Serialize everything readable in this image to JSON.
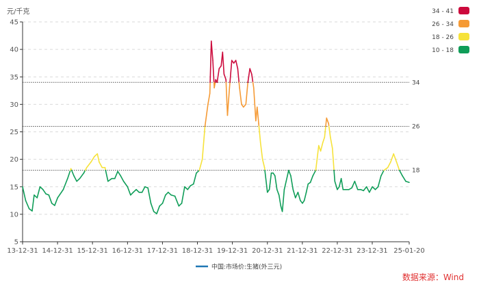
{
  "chart_data": {
    "type": "line",
    "y_unit": "元/千克",
    "ylim": [
      5,
      45
    ],
    "yticks": [
      5,
      10,
      15,
      20,
      25,
      30,
      35,
      40,
      45
    ],
    "xlim": [
      "2013-12-31",
      "2025-01-20"
    ],
    "xticks": [
      {
        "date": "2013-12-31",
        "label": "13-12-31"
      },
      {
        "date": "2014-12-31",
        "label": "14-12-31"
      },
      {
        "date": "2015-12-31",
        "label": "15-12-31"
      },
      {
        "date": "2016-12-31",
        "label": "16-12-31"
      },
      {
        "date": "2017-12-31",
        "label": "17-12-31"
      },
      {
        "date": "2018-12-31",
        "label": "18-12-31"
      },
      {
        "date": "2019-12-31",
        "label": "19-12-31"
      },
      {
        "date": "2020-12-31",
        "label": "20-12-31"
      },
      {
        "date": "2021-12-31",
        "label": "21-12-31"
      },
      {
        "date": "2022-12-31",
        "label": "22-12-31"
      },
      {
        "date": "2023-12-31",
        "label": "23-12-31"
      },
      {
        "date": "2025-01-20",
        "label": "25-01-20"
      }
    ],
    "grid": "horizontal dashed",
    "thresholds": [
      {
        "value": 34,
        "label": "34"
      },
      {
        "value": 26,
        "label": "26"
      },
      {
        "value": 18,
        "label": "18"
      }
    ],
    "color_ranges": [
      {
        "label": "34 - 41",
        "min": 34,
        "max": 41,
        "color": "#cc0a3c"
      },
      {
        "label": "26 - 34",
        "min": 26,
        "max": 34,
        "color": "#f59a35"
      },
      {
        "label": "18 - 26",
        "min": 18,
        "max": 26,
        "color": "#f6e23a"
      },
      {
        "label": "10 - 18",
        "min": 10,
        "max": 18,
        "color": "#0f9d58"
      }
    ],
    "legend_position": "top-right",
    "series": [
      {
        "name": "中国:市场价:生猪(外三元)",
        "legend_color": "#1f77b4",
        "points": [
          [
            "2013-12-31",
            15.0
          ],
          [
            "2014-02-01",
            12.5
          ],
          [
            "2014-03-10",
            11.0
          ],
          [
            "2014-04-10",
            10.6
          ],
          [
            "2014-05-01",
            13.5
          ],
          [
            "2014-06-01",
            13.0
          ],
          [
            "2014-07-01",
            15.0
          ],
          [
            "2014-08-01",
            14.5
          ],
          [
            "2014-09-01",
            13.7
          ],
          [
            "2014-10-01",
            13.5
          ],
          [
            "2014-11-01",
            12.0
          ],
          [
            "2014-12-01",
            11.6
          ],
          [
            "2015-01-01",
            13.0
          ],
          [
            "2015-03-01",
            14.5
          ],
          [
            "2015-04-15",
            16.5
          ],
          [
            "2015-05-20",
            18.3
          ],
          [
            "2015-06-20",
            17.0
          ],
          [
            "2015-07-20",
            16.0
          ],
          [
            "2015-08-20",
            16.5
          ],
          [
            "2015-10-01",
            17.5
          ],
          [
            "2015-11-01",
            18.5
          ],
          [
            "2015-12-15",
            19.5
          ],
          [
            "2016-01-20",
            20.5
          ],
          [
            "2016-02-20",
            21.0
          ],
          [
            "2016-03-10",
            19.5
          ],
          [
            "2016-04-10",
            18.5
          ],
          [
            "2016-05-10",
            18.5
          ],
          [
            "2016-06-10",
            16.0
          ],
          [
            "2016-07-20",
            16.5
          ],
          [
            "2016-08-20",
            16.5
          ],
          [
            "2016-09-20",
            17.8
          ],
          [
            "2016-10-20",
            17.0
          ],
          [
            "2016-11-20",
            16.0
          ],
          [
            "2016-12-31",
            15.0
          ],
          [
            "2017-02-01",
            13.5
          ],
          [
            "2017-03-01",
            14.0
          ],
          [
            "2017-04-01",
            14.5
          ],
          [
            "2017-05-01",
            14.0
          ],
          [
            "2017-06-01",
            14.0
          ],
          [
            "2017-07-01",
            15.0
          ],
          [
            "2017-08-01",
            14.8
          ],
          [
            "2017-09-01",
            12.0
          ],
          [
            "2017-10-01",
            10.5
          ],
          [
            "2017-11-01",
            10.1
          ],
          [
            "2017-12-01",
            11.5
          ],
          [
            "2018-01-01",
            12.0
          ],
          [
            "2018-02-01",
            13.5
          ],
          [
            "2018-03-01",
            14.0
          ],
          [
            "2018-04-01",
            13.5
          ],
          [
            "2018-05-10",
            13.3
          ],
          [
            "2018-06-20",
            11.5
          ],
          [
            "2018-07-20",
            12.0
          ],
          [
            "2018-08-20",
            15.0
          ],
          [
            "2018-09-20",
            14.5
          ],
          [
            "2018-10-20",
            15.2
          ],
          [
            "2018-11-20",
            15.5
          ],
          [
            "2018-12-20",
            17.5
          ],
          [
            "2019-01-20",
            18.0
          ],
          [
            "2019-02-20",
            20.0
          ],
          [
            "2019-03-20",
            26.0
          ],
          [
            "2019-04-20",
            30.0
          ],
          [
            "2019-05-10",
            32.0
          ],
          [
            "2019-05-25",
            41.5
          ],
          [
            "2019-06-10",
            38.0
          ],
          [
            "2019-06-25",
            33.0
          ],
          [
            "2019-07-10",
            34.5
          ],
          [
            "2019-07-25",
            34.0
          ],
          [
            "2019-08-15",
            36.5
          ],
          [
            "2019-09-05",
            37.0
          ],
          [
            "2019-09-20",
            39.5
          ],
          [
            "2019-10-05",
            35.5
          ],
          [
            "2019-10-25",
            34.5
          ],
          [
            "2019-11-10",
            28.0
          ],
          [
            "2019-12-01",
            33.0
          ],
          [
            "2019-12-25",
            38.0
          ],
          [
            "2020-01-15",
            37.5
          ],
          [
            "2020-02-05",
            38.0
          ],
          [
            "2020-02-25",
            36.5
          ],
          [
            "2020-03-15",
            33.0
          ],
          [
            "2020-04-05",
            30.0
          ],
          [
            "2020-04-25",
            29.5
          ],
          [
            "2020-05-20",
            30.0
          ],
          [
            "2020-06-10",
            34.0
          ],
          [
            "2020-07-01",
            36.5
          ],
          [
            "2020-07-20",
            35.5
          ],
          [
            "2020-08-10",
            33.0
          ],
          [
            "2020-09-01",
            27.0
          ],
          [
            "2020-09-15",
            29.5
          ],
          [
            "2020-10-01",
            26.5
          ],
          [
            "2020-10-20",
            23.0
          ],
          [
            "2020-11-10",
            20.0
          ],
          [
            "2020-12-01",
            18.5
          ],
          [
            "2020-12-31",
            14.0
          ],
          [
            "2021-01-20",
            14.5
          ],
          [
            "2021-02-10",
            17.5
          ],
          [
            "2021-03-01",
            17.5
          ],
          [
            "2021-03-20",
            17.0
          ],
          [
            "2021-04-10",
            14.5
          ],
          [
            "2021-05-01",
            13.5
          ],
          [
            "2021-05-20",
            11.5
          ],
          [
            "2021-06-05",
            10.5
          ],
          [
            "2021-06-25",
            14.5
          ],
          [
            "2021-07-15",
            16.0
          ],
          [
            "2021-08-10",
            18.0
          ],
          [
            "2021-09-01",
            17.0
          ],
          [
            "2021-09-25",
            14.5
          ],
          [
            "2021-10-20",
            13.0
          ],
          [
            "2021-11-15",
            14.0
          ],
          [
            "2021-12-10",
            12.5
          ],
          [
            "2022-01-01",
            12.0
          ],
          [
            "2022-01-20",
            12.5
          ],
          [
            "2022-02-10",
            14.0
          ],
          [
            "2022-03-01",
            15.5
          ],
          [
            "2022-03-25",
            15.8
          ],
          [
            "2022-04-20",
            17.0
          ],
          [
            "2022-05-20",
            18.0
          ],
          [
            "2022-06-20",
            22.5
          ],
          [
            "2022-07-10",
            21.5
          ],
          [
            "2022-08-01",
            23.0
          ],
          [
            "2022-08-20",
            24.0
          ],
          [
            "2022-09-10",
            27.5
          ],
          [
            "2022-10-01",
            26.5
          ],
          [
            "2022-10-20",
            24.0
          ],
          [
            "2022-11-10",
            22.0
          ],
          [
            "2022-12-05",
            16.0
          ],
          [
            "2022-12-31",
            14.5
          ],
          [
            "2023-01-20",
            15.0
          ],
          [
            "2023-02-10",
            16.5
          ],
          [
            "2023-03-01",
            14.5
          ],
          [
            "2023-04-01",
            14.5
          ],
          [
            "2023-05-01",
            14.5
          ],
          [
            "2023-06-01",
            14.8
          ],
          [
            "2023-07-01",
            16.0
          ],
          [
            "2023-08-01",
            14.5
          ],
          [
            "2023-09-01",
            14.5
          ],
          [
            "2023-10-01",
            14.3
          ],
          [
            "2023-11-01",
            15.0
          ],
          [
            "2023-12-01",
            14.0
          ],
          [
            "2024-01-01",
            15.0
          ],
          [
            "2024-02-01",
            14.5
          ],
          [
            "2024-03-01",
            15.0
          ],
          [
            "2024-04-01",
            17.0
          ],
          [
            "2024-05-01",
            18.0
          ],
          [
            "2024-06-10",
            18.5
          ],
          [
            "2024-07-10",
            19.5
          ],
          [
            "2024-08-10",
            21.0
          ],
          [
            "2024-09-10",
            19.5
          ],
          [
            "2024-10-10",
            18.0
          ],
          [
            "2024-11-10",
            17.0
          ],
          [
            "2024-12-15",
            16.0
          ],
          [
            "2025-01-20",
            15.8
          ]
        ]
      }
    ]
  },
  "footer": {
    "source": "数据来源：Wind"
  }
}
